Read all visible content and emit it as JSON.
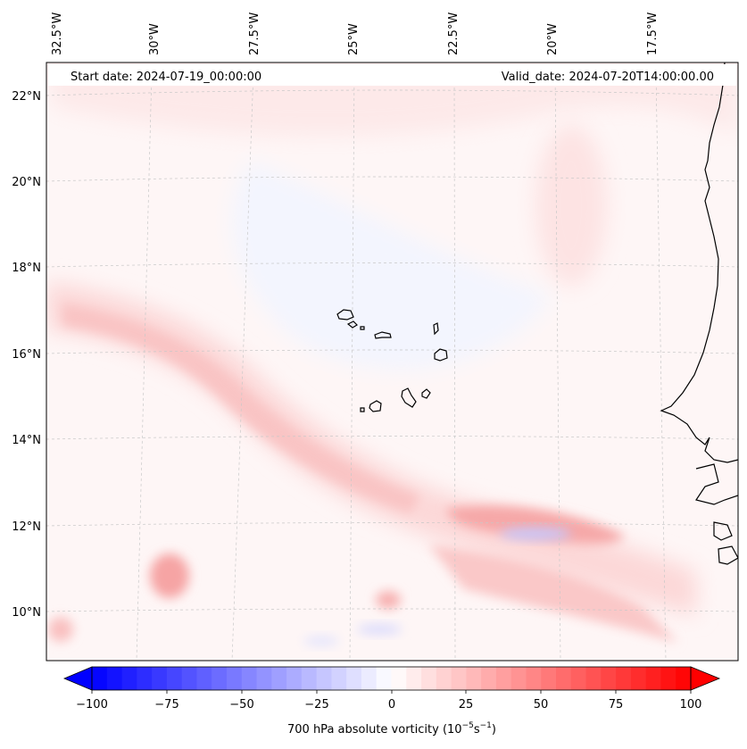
{
  "header": {
    "start_label": "Start date: 2024-07-19_00:00:00",
    "valid_label": "Valid_date: 2024-07-20T14:00:00.00"
  },
  "longitude_ticks": [
    "32.5°W",
    "30°W",
    "27.5°W",
    "25°W",
    "22.5°W",
    "20°W",
    "17.5°W"
  ],
  "latitude_ticks": [
    "22°N",
    "20°N",
    "18°N",
    "16°N",
    "14°N",
    "12°N",
    "10°N"
  ],
  "colorbar": {
    "ticks": [
      "−100",
      "−75",
      "−50",
      "−25",
      "0",
      "25",
      "50",
      "75",
      "100"
    ],
    "label_text": "700 hPa absolute vorticity (10",
    "label_exp1": "−5",
    "label_mid": "s",
    "label_exp2": "−1",
    "label_close": ")",
    "min_color": "#0000ff",
    "mid_color": "#ffffff",
    "max_color": "#ff0000"
  },
  "colors": {
    "coastline": "#000000",
    "gridline": "#c8c8c8"
  }
}
